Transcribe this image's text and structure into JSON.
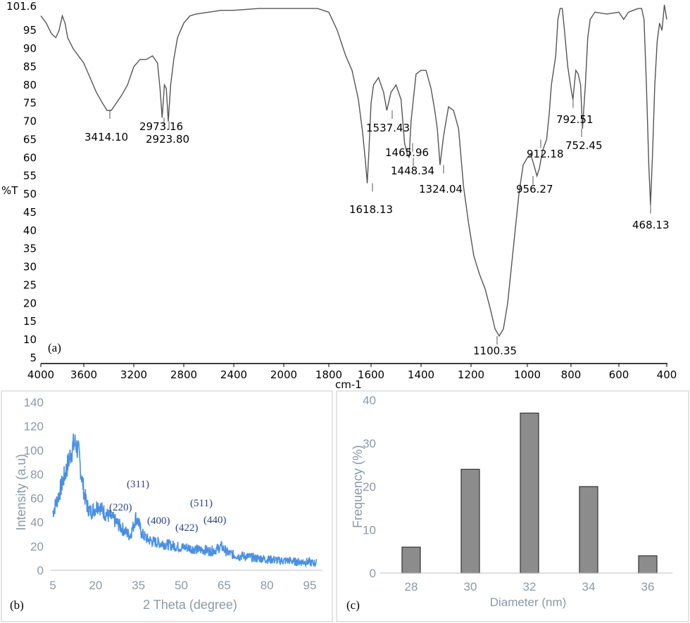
{
  "chart_data": [
    {
      "type": "line",
      "panel_label": "(a)",
      "xlabel": "cm-1",
      "ylabel": "%T",
      "xlim": [
        4000,
        400
      ],
      "x_reversed": true,
      "ylim": [
        5,
        101.6
      ],
      "x_ticks": [
        "4000",
        "3600",
        "3200",
        "2800",
        "2400",
        "2000",
        "1800",
        "1600",
        "1400",
        "1200",
        "1000",
        "800",
        "600",
        "400"
      ],
      "y_ticks": [
        "101.6",
        "95",
        "90",
        "85",
        "80",
        "75",
        "70",
        "65",
        "60",
        "55",
        "50",
        "45",
        "40",
        "35",
        "30",
        "25",
        "20",
        "15",
        "10",
        "5"
      ],
      "grid": false,
      "peak_labels": [
        "3414.10",
        "2973.16",
        "2923.80",
        "1618.13",
        "1537.43",
        "1465.96",
        "1448.34",
        "1324.04",
        "1100.35",
        "956.27",
        "912.18",
        "792.51",
        "752.45",
        "468.13"
      ],
      "series": [
        {
          "values": [
            [
              4000,
              99
            ],
            [
              3950,
              97
            ],
            [
              3900,
              94
            ],
            [
              3860,
              93
            ],
            [
              3830,
              95
            ],
            [
              3800,
              99
            ],
            [
              3775,
              97
            ],
            [
              3750,
              93
            ],
            [
              3700,
              90
            ],
            [
              3650,
              88
            ],
            [
              3600,
              86
            ],
            [
              3550,
              82
            ],
            [
              3500,
              78
            ],
            [
              3450,
              75
            ],
            [
              3414,
              73
            ],
            [
              3380,
              73
            ],
            [
              3300,
              77
            ],
            [
              3250,
              80
            ],
            [
              3200,
              85
            ],
            [
              3150,
              87
            ],
            [
              3100,
              87
            ],
            [
              3050,
              88
            ],
            [
              3010,
              86
            ],
            [
              2990,
              79
            ],
            [
              2973,
              71
            ],
            [
              2955,
              80
            ],
            [
              2940,
              79
            ],
            [
              2924,
              70
            ],
            [
              2905,
              80
            ],
            [
              2880,
              87
            ],
            [
              2850,
              93
            ],
            [
              2800,
              97
            ],
            [
              2750,
              99
            ],
            [
              2700,
              99.5
            ],
            [
              2600,
              100
            ],
            [
              2500,
              100.5
            ],
            [
              2400,
              100.5
            ],
            [
              2200,
              101
            ],
            [
              2000,
              101
            ],
            [
              1850,
              101
            ],
            [
              1800,
              100
            ],
            [
              1760,
              95
            ],
            [
              1720,
              88
            ],
            [
              1690,
              84
            ],
            [
              1660,
              76
            ],
            [
              1640,
              67
            ],
            [
              1625,
              58
            ],
            [
              1618,
              53
            ],
            [
              1610,
              62
            ],
            [
              1600,
              75
            ],
            [
              1590,
              80
            ],
            [
              1570,
              82
            ],
            [
              1550,
              78
            ],
            [
              1537,
              73
            ],
            [
              1520,
              78
            ],
            [
              1500,
              80
            ],
            [
              1480,
              76
            ],
            [
              1466,
              64
            ],
            [
              1455,
              61
            ],
            [
              1448,
              60
            ],
            [
              1440,
              70
            ],
            [
              1420,
              83
            ],
            [
              1400,
              84
            ],
            [
              1380,
              84
            ],
            [
              1360,
              79
            ],
            [
              1345,
              73
            ],
            [
              1335,
              68
            ],
            [
              1324,
              58
            ],
            [
              1310,
              66
            ],
            [
              1290,
              74
            ],
            [
              1270,
              73
            ],
            [
              1250,
              68
            ],
            [
              1230,
              52
            ],
            [
              1210,
              42
            ],
            [
              1190,
              33
            ],
            [
              1170,
              28
            ],
            [
              1150,
              24
            ],
            [
              1130,
              18
            ],
            [
              1115,
              13
            ],
            [
              1100,
              11
            ],
            [
              1085,
              13
            ],
            [
              1070,
              20
            ],
            [
              1050,
              35
            ],
            [
              1030,
              50
            ],
            [
              1015,
              58
            ],
            [
              1000,
              60
            ],
            [
              985,
              61
            ],
            [
              970,
              58
            ],
            [
              956,
              55
            ],
            [
              945,
              57
            ],
            [
              930,
              62
            ],
            [
              912,
              65
            ],
            [
              900,
              72
            ],
            [
              890,
              80
            ],
            [
              870,
              88
            ],
            [
              860,
              98
            ],
            [
              850,
              101
            ],
            [
              840,
              101
            ],
            [
              830,
              95
            ],
            [
              815,
              85
            ],
            [
              800,
              79
            ],
            [
              792,
              76
            ],
            [
              780,
              84
            ],
            [
              770,
              83
            ],
            [
              760,
              80
            ],
            [
              752,
              68
            ],
            [
              740,
              80
            ],
            [
              730,
              93
            ],
            [
              720,
              98
            ],
            [
              700,
              100
            ],
            [
              650,
              99.5
            ],
            [
              600,
              100
            ],
            [
              580,
              98
            ],
            [
              560,
              100
            ],
            [
              540,
              100.5
            ],
            [
              520,
              101
            ],
            [
              505,
              101
            ],
            [
              495,
              98
            ],
            [
              485,
              80
            ],
            [
              475,
              58
            ],
            [
              468,
              47
            ],
            [
              460,
              60
            ],
            [
              450,
              80
            ],
            [
              440,
              92
            ],
            [
              430,
              97
            ],
            [
              420,
              95
            ],
            [
              410,
              102
            ],
            [
              400,
              98
            ]
          ]
        }
      ]
    },
    {
      "type": "line",
      "panel_label": "(b)",
      "xlabel": "2 Theta (degree)",
      "ylabel": "Intensity (a.u)",
      "xlim": [
        5,
        98
      ],
      "ylim": [
        0,
        140
      ],
      "x_ticks": [
        "5",
        "20",
        "35",
        "50",
        "65",
        "80",
        "95"
      ],
      "y_ticks": [
        "0",
        "20",
        "40",
        "60",
        "80",
        "100",
        "120",
        "140"
      ],
      "grid": false,
      "color": "#4a90e2",
      "peak_labels": [
        "(220)",
        "(311)",
        "(400)",
        "(422)",
        "(511)",
        "(440)"
      ],
      "series": [
        {
          "values": [
            [
              5,
              48
            ],
            [
              6,
              55
            ],
            [
              7,
              62
            ],
            [
              8,
              70
            ],
            [
              9,
              78
            ],
            [
              10,
              86
            ],
            [
              11,
              95
            ],
            [
              12,
              103
            ],
            [
              13,
              106
            ],
            [
              14,
              98
            ],
            [
              15,
              80
            ],
            [
              16,
              64
            ],
            [
              17,
              54
            ],
            [
              18,
              49
            ],
            [
              19,
              50
            ],
            [
              20,
              52
            ],
            [
              21,
              55
            ],
            [
              22,
              51
            ],
            [
              24,
              46
            ],
            [
              26,
              43
            ],
            [
              28,
              38
            ],
            [
              30,
              33
            ],
            [
              32,
              29
            ],
            [
              33,
              35
            ],
            [
              34,
              44
            ],
            [
              35,
              40
            ],
            [
              36,
              31
            ],
            [
              38,
              26
            ],
            [
              40,
              24
            ],
            [
              42,
              23
            ],
            [
              44,
              22
            ],
            [
              46,
              21
            ],
            [
              48,
              20
            ],
            [
              50,
              19
            ],
            [
              52,
              19
            ],
            [
              54,
              18
            ],
            [
              56,
              17
            ],
            [
              58,
              17
            ],
            [
              60,
              16
            ],
            [
              62,
              17
            ],
            [
              64,
              20
            ],
            [
              66,
              15
            ],
            [
              68,
              13
            ],
            [
              70,
              12
            ],
            [
              72,
              12
            ],
            [
              74,
              11
            ],
            [
              76,
              10
            ],
            [
              78,
              10
            ],
            [
              80,
              9
            ],
            [
              82,
              9
            ],
            [
              84,
              8
            ],
            [
              86,
              8
            ],
            [
              88,
              8
            ],
            [
              90,
              7
            ],
            [
              92,
              7
            ],
            [
              94,
              7
            ],
            [
              96,
              6
            ],
            [
              98,
              6
            ]
          ]
        }
      ]
    },
    {
      "type": "bar",
      "panel_label": "(c)",
      "xlabel": "Diameter (nm)",
      "ylabel": "Frequency (%)",
      "categories": [
        "28",
        "30",
        "32",
        "34",
        "36"
      ],
      "values": [
        6,
        24,
        37,
        20,
        4
      ],
      "ylim": [
        0,
        40
      ],
      "y_ticks": [
        "0",
        "10",
        "20",
        "30",
        "40"
      ],
      "grid": false,
      "bar_color": "#8c8c8c"
    }
  ]
}
